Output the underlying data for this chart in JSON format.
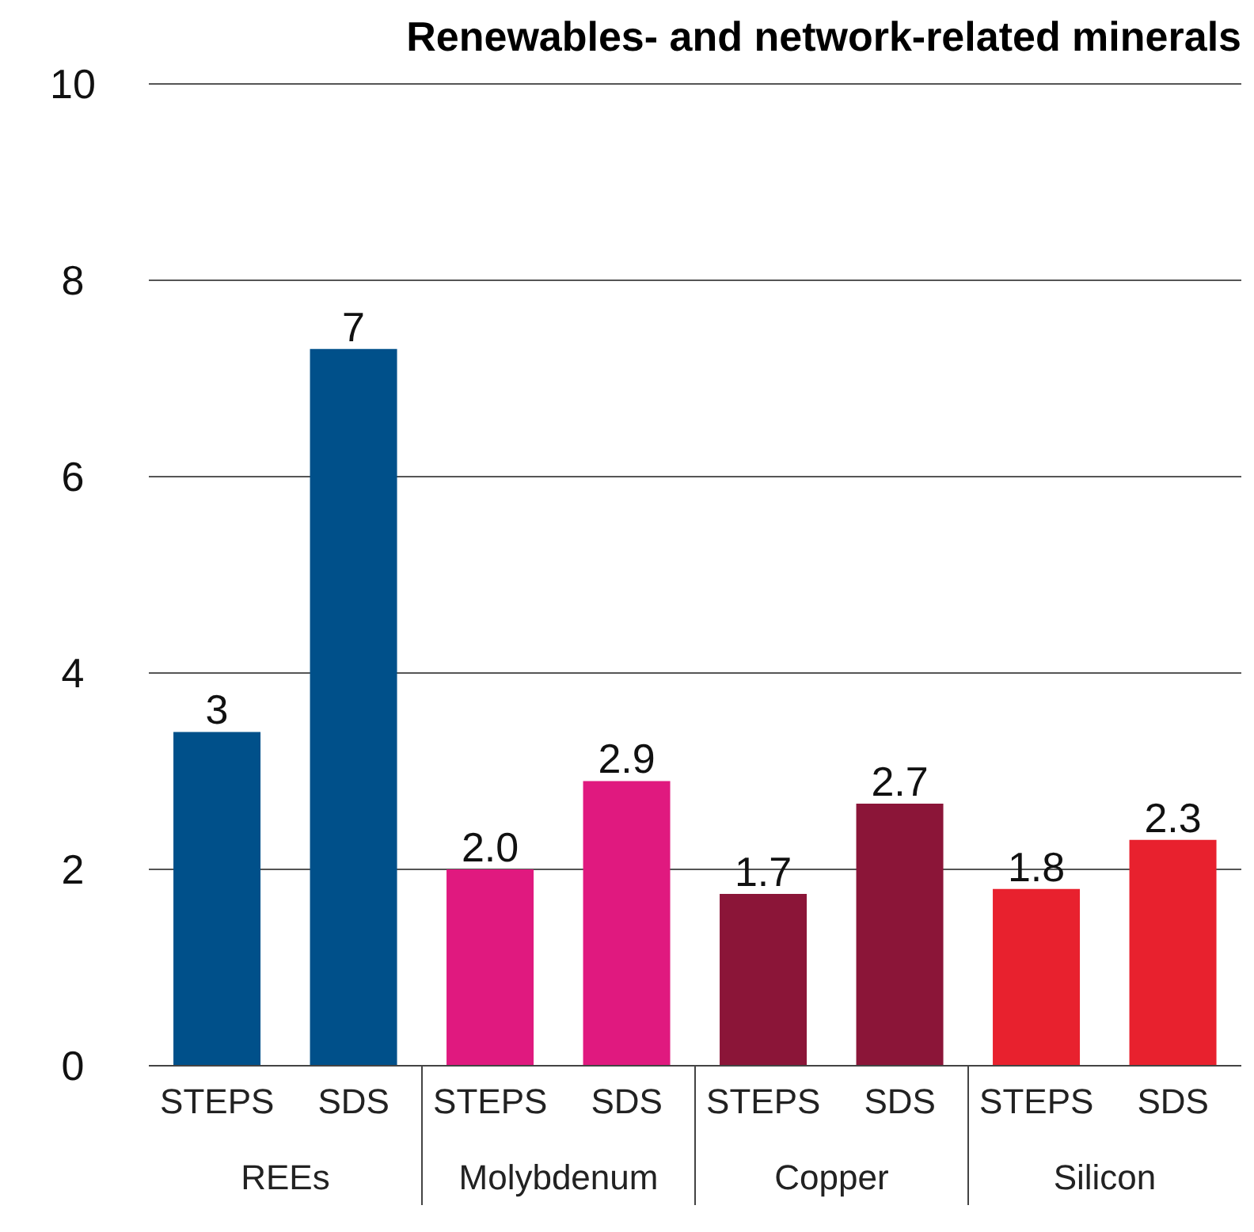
{
  "chart_data": {
    "type": "bar",
    "title": "Renewables- and network-related minerals",
    "categories": [
      "STEPS",
      "SDS",
      "STEPS",
      "SDS",
      "STEPS",
      "SDS",
      "STEPS",
      "SDS"
    ],
    "values": [
      3.4,
      7.3,
      2.0,
      2.9,
      1.75,
      2.67,
      1.8,
      2.3
    ],
    "value_labels": [
      "3",
      "7",
      "2.0",
      "2.9",
      "1.7",
      "2.7",
      "1.8",
      "2.3"
    ],
    "colors": [
      "#00508a",
      "#00508a",
      "#e0197f",
      "#e0197f",
      "#8b1538",
      "#8b1538",
      "#e8212e",
      "#e8212e"
    ],
    "annotations": [
      "REEs",
      "Molybdenum",
      "Copper",
      "Silicon"
    ],
    "ylim": [
      0,
      10
    ],
    "yticks": [
      0,
      2,
      4,
      6,
      8,
      10
    ],
    "grid": "y"
  }
}
